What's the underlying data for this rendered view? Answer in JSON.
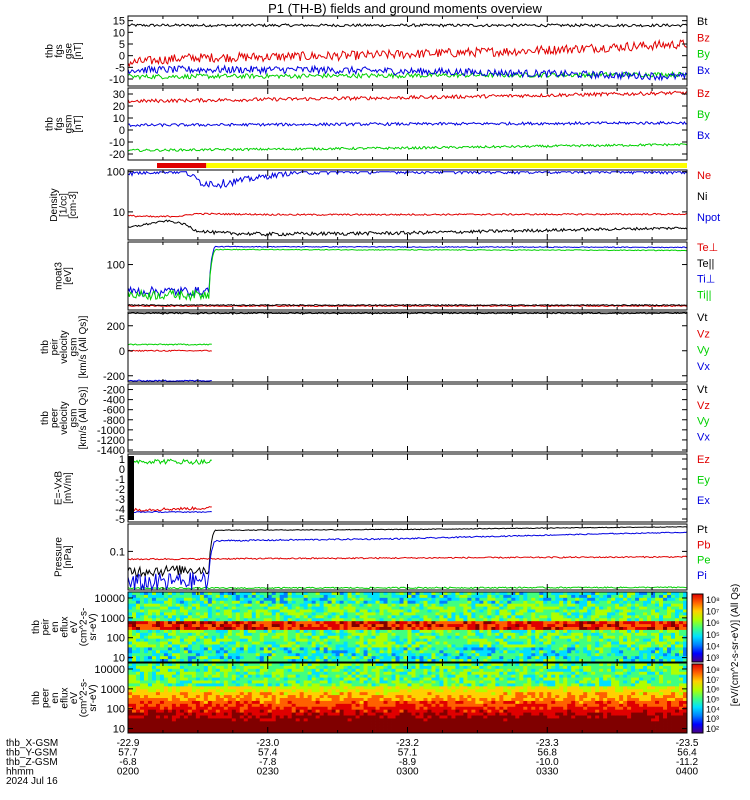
{
  "title": "P1 (TH-B) fields and ground moments overview",
  "colors": {
    "black": "#000000",
    "red": "#e00000",
    "green": "#00d000",
    "blue": "#0000e0",
    "yellow": "#ffff00",
    "frame": "#000000"
  },
  "chart_data": [
    {
      "id": "fgs_gse",
      "type": "line",
      "ylabel": [
        "thb",
        "fgs",
        "gse",
        "[nT]"
      ],
      "yticks": [
        15,
        10,
        5,
        0,
        -5,
        -10
      ],
      "ylim": [
        -13,
        17
      ],
      "legend": [
        {
          "name": "Bt",
          "color": "black"
        },
        {
          "name": "Bz",
          "color": "red"
        },
        {
          "name": "By",
          "color": "green"
        },
        {
          "name": "Bx",
          "color": "blue"
        }
      ],
      "series": [
        {
          "name": "Bt",
          "color": "black",
          "x": [
            0,
            1
          ],
          "y": [
            13,
            13
          ],
          "noise": 0.6
        },
        {
          "name": "Bz",
          "color": "red",
          "x": [
            0,
            0.1,
            0.4,
            0.7,
            1
          ],
          "y": [
            -3,
            -1,
            0,
            2,
            5
          ],
          "noise": 2.0
        },
        {
          "name": "By",
          "color": "green",
          "x": [
            0,
            1
          ],
          "y": [
            -9,
            -8
          ],
          "noise": 1.0
        },
        {
          "name": "Bx",
          "color": "blue",
          "x": [
            0,
            0.3,
            0.6,
            1
          ],
          "y": [
            -6,
            -6,
            -7,
            -9
          ],
          "noise": 1.6
        }
      ]
    },
    {
      "id": "fgs_gsm",
      "type": "line",
      "ylabel": [
        "thb",
        "fgs",
        "gsm",
        "[nT]"
      ],
      "yticks": [
        30,
        20,
        10,
        0,
        -10,
        -20
      ],
      "ylim": [
        -25,
        35
      ],
      "legend": [
        {
          "name": "Bz",
          "color": "red"
        },
        {
          "name": "By",
          "color": "green"
        },
        {
          "name": "Bx",
          "color": "blue"
        }
      ],
      "series": [
        {
          "name": "Bz",
          "color": "red",
          "x": [
            0,
            0.5,
            1
          ],
          "y": [
            24,
            27,
            31
          ],
          "noise": 1.5
        },
        {
          "name": "By",
          "color": "green",
          "x": [
            0,
            0.5,
            1
          ],
          "y": [
            -17,
            -15,
            -12
          ],
          "noise": 1.0
        },
        {
          "name": "Bx",
          "color": "blue",
          "x": [
            0,
            0.5,
            1
          ],
          "y": [
            4,
            5,
            6
          ],
          "noise": 1.2
        }
      ]
    },
    {
      "id": "density",
      "type": "line",
      "log": true,
      "ylabel": [
        "Density",
        "[1/cc]",
        "[cm-3]"
      ],
      "yticks": [
        100,
        10
      ],
      "ylim": [
        2,
        110
      ],
      "legend": [
        {
          "name": "Ne",
          "color": "red"
        },
        {
          "name": "Ni",
          "color": "black"
        },
        {
          "name": "Npot",
          "color": "blue"
        }
      ],
      "series": [
        {
          "name": "Ne",
          "color": "red",
          "x": [
            0,
            0.05,
            0.1,
            0.12,
            0.3,
            1
          ],
          "y": [
            8,
            7.5,
            8,
            9,
            8.5,
            8.8
          ],
          "noise": 0.4
        },
        {
          "name": "Ni",
          "color": "black",
          "x": [
            0,
            0.07,
            0.1,
            0.12,
            0.16,
            0.25,
            0.5,
            1
          ],
          "y": [
            4,
            6,
            5,
            3.5,
            3,
            2.8,
            3,
            4
          ],
          "noise": 0.3
        },
        {
          "name": "Npot",
          "color": "blue",
          "x": [
            0,
            0.05,
            0.1,
            0.13,
            0.16,
            0.2,
            0.3,
            0.45,
            1
          ],
          "y": [
            90,
            100,
            100,
            55,
            50,
            60,
            95,
            100,
            100
          ],
          "noise": 12,
          "clip": 100
        }
      ]
    },
    {
      "id": "temperature",
      "type": "line",
      "log": true,
      "ylabel": [
        "moat3",
        "[eV]"
      ],
      "yticks": [
        100
      ],
      "ylim": [
        8,
        350
      ],
      "legend": [
        {
          "name": "Te⊥",
          "color": "red"
        },
        {
          "name": "Te||",
          "color": "black"
        },
        {
          "name": "Ti⊥",
          "color": "blue"
        },
        {
          "name": "Ti||",
          "color": "green"
        }
      ],
      "series": [
        {
          "name": "Te⊥",
          "color": "red",
          "x": [
            0,
            1
          ],
          "y": [
            10,
            10
          ],
          "noise": 0.3
        },
        {
          "name": "Te||",
          "color": "black",
          "x": [
            0,
            1
          ],
          "y": [
            10.5,
            10.5
          ],
          "noise": 0.3
        },
        {
          "name": "Ti⊥",
          "color": "blue",
          "x": [
            0,
            0.145,
            0.155,
            1
          ],
          "y": [
            23,
            23,
            270,
            260
          ],
          "noise": 6
        },
        {
          "name": "Ti||",
          "color": "green",
          "x": [
            0,
            0.145,
            0.155,
            1
          ],
          "y": [
            19,
            19,
            230,
            220
          ],
          "noise": 5
        }
      ]
    },
    {
      "id": "peir_velocity",
      "type": "line",
      "ylabel": [
        "thb",
        "peir",
        "velocity",
        "gsm",
        "[km/s (All Qs)]"
      ],
      "yticks": [
        200,
        0,
        -200
      ],
      "ylim": [
        -250,
        310
      ],
      "legend": [
        {
          "name": "Vt",
          "color": "black"
        },
        {
          "name": "Vz",
          "color": "red"
        },
        {
          "name": "Vy",
          "color": "green"
        },
        {
          "name": "Vx",
          "color": "blue"
        }
      ],
      "series": [
        {
          "name": "Vt",
          "color": "black",
          "x": [
            0,
            1
          ],
          "y": [
            300,
            300
          ],
          "noise": 4
        },
        {
          "name": "Vz",
          "color": "red",
          "x": [
            0,
            0.15
          ],
          "y": [
            0,
            0
          ],
          "noise": 5
        },
        {
          "name": "Vy",
          "color": "green",
          "x": [
            0,
            0.15
          ],
          "y": [
            50,
            50
          ],
          "noise": 5
        },
        {
          "name": "Vx",
          "color": "blue",
          "x": [
            0,
            0.15
          ],
          "y": [
            -240,
            -240
          ],
          "noise": 5
        }
      ]
    },
    {
      "id": "peer_velocity",
      "type": "line",
      "ylabel": [
        "thb",
        "peer",
        "velocity",
        "gsm",
        "[km/s (All Qs)]"
      ],
      "yticks": [
        -200,
        -400,
        -600,
        -800,
        -1000,
        -1200,
        -1400
      ],
      "ylim": [
        -1440,
        -90
      ],
      "legend": [
        {
          "name": "Vt",
          "color": "black"
        },
        {
          "name": "Vz",
          "color": "red"
        },
        {
          "name": "Vy",
          "color": "green"
        },
        {
          "name": "Vx",
          "color": "blue"
        }
      ],
      "series": []
    },
    {
      "id": "efield",
      "type": "line",
      "ylabel": [
        "E=-VxB",
        "[mV/m]"
      ],
      "yticks": [
        1,
        0,
        -1,
        -2,
        -3,
        -4,
        -5
      ],
      "ylim": [
        -5.3,
        1.5
      ],
      "legend": [
        {
          "name": "Ez",
          "color": "red"
        },
        {
          "name": "Ey",
          "color": "green"
        },
        {
          "name": "Ex",
          "color": "blue"
        }
      ],
      "series": [
        {
          "name": "Ez",
          "color": "red",
          "x": [
            0,
            0.15
          ],
          "y": [
            -4.1,
            -3.9
          ],
          "noise": 0.15
        },
        {
          "name": "Ey",
          "color": "green",
          "x": [
            0,
            0.15
          ],
          "y": [
            0.8,
            0.7
          ],
          "noise": 0.25
        },
        {
          "name": "Ex",
          "color": "blue",
          "x": [
            0,
            0.15
          ],
          "y": [
            -4.3,
            -4.3
          ],
          "noise": 0.05
        }
      ]
    },
    {
      "id": "pressure",
      "type": "line",
      "log": true,
      "ylabel": [
        "Pressure",
        "[nPa]"
      ],
      "yticks": [
        0.1
      ],
      "ylim": [
        0.008,
        0.6
      ],
      "legend": [
        {
          "name": "Pt",
          "color": "black"
        },
        {
          "name": "Pb",
          "color": "red"
        },
        {
          "name": "Pe",
          "color": "green"
        },
        {
          "name": "Pi",
          "color": "blue"
        }
      ],
      "series": [
        {
          "name": "Pt",
          "color": "black",
          "x": [
            0,
            0.12,
            0.145,
            0.155,
            0.5,
            1
          ],
          "y": [
            0.028,
            0.031,
            0.03,
            0.4,
            0.42,
            0.5
          ],
          "noise": 0.01
        },
        {
          "name": "Pb",
          "color": "red",
          "x": [
            0,
            1
          ],
          "y": [
            0.06,
            0.07
          ],
          "noise": 0.003
        },
        {
          "name": "Pe",
          "color": "green",
          "x": [
            0,
            1
          ],
          "y": [
            0.009,
            0.0095
          ],
          "noise": 0.0004
        },
        {
          "name": "Pi",
          "color": "blue",
          "x": [
            0,
            0.13,
            0.145,
            0.155,
            0.5,
            1
          ],
          "y": [
            0.012,
            0.016,
            0.014,
            0.2,
            0.23,
            0.35
          ],
          "noise": 0.01
        }
      ]
    },
    {
      "id": "peir_eflux",
      "type": "heatmap",
      "ylabel": [
        "thb",
        "peir",
        "en",
        "eflux",
        "eV",
        "(cm^2-s-",
        "sr-eV)"
      ],
      "yticks": [
        10000,
        1000,
        100,
        10
      ],
      "ylim": [
        6,
        20000
      ]
    },
    {
      "id": "peer_eflux",
      "type": "heatmap",
      "ylabel": [
        "thb",
        "peer",
        "en",
        "eflux",
        "eV",
        "(cm^2-s-",
        "sr-eV)"
      ],
      "yticks": [
        10000,
        1000,
        100,
        10
      ],
      "ylim": [
        6,
        20000
      ]
    }
  ],
  "colorbar": {
    "ticks_top": [
      "10⁸",
      "10⁷",
      "10⁶",
      "10⁵",
      "10⁴",
      "10³"
    ],
    "ticks_bottom": [
      "10⁸",
      "10⁷",
      "10⁶",
      "10⁵",
      "10⁴",
      "10³",
      "10²"
    ],
    "label": "[eV/(cm^2-s-sr-eV)] (All Qs)"
  },
  "x_axis": {
    "rows": [
      {
        "label": "thb_X-GSM",
        "values": [
          "-22.9",
          "-23.0",
          "-23.2",
          "-23.3",
          "-23.5"
        ]
      },
      {
        "label": "thb_Y-GSM",
        "values": [
          "57.7",
          "57.4",
          "57.1",
          "56.8",
          "56.4"
        ]
      },
      {
        "label": "thb_Z-GSM",
        "values": [
          "-6.8",
          "-7.8",
          "-8.9",
          "-10.0",
          "-11.2"
        ]
      },
      {
        "label": "hhmm",
        "values": [
          "0200",
          "0230",
          "0300",
          "0330",
          "0400"
        ]
      }
    ],
    "date": "2024 Jul 16"
  },
  "mode_bar": {
    "red_end_fraction": 0.14
  }
}
